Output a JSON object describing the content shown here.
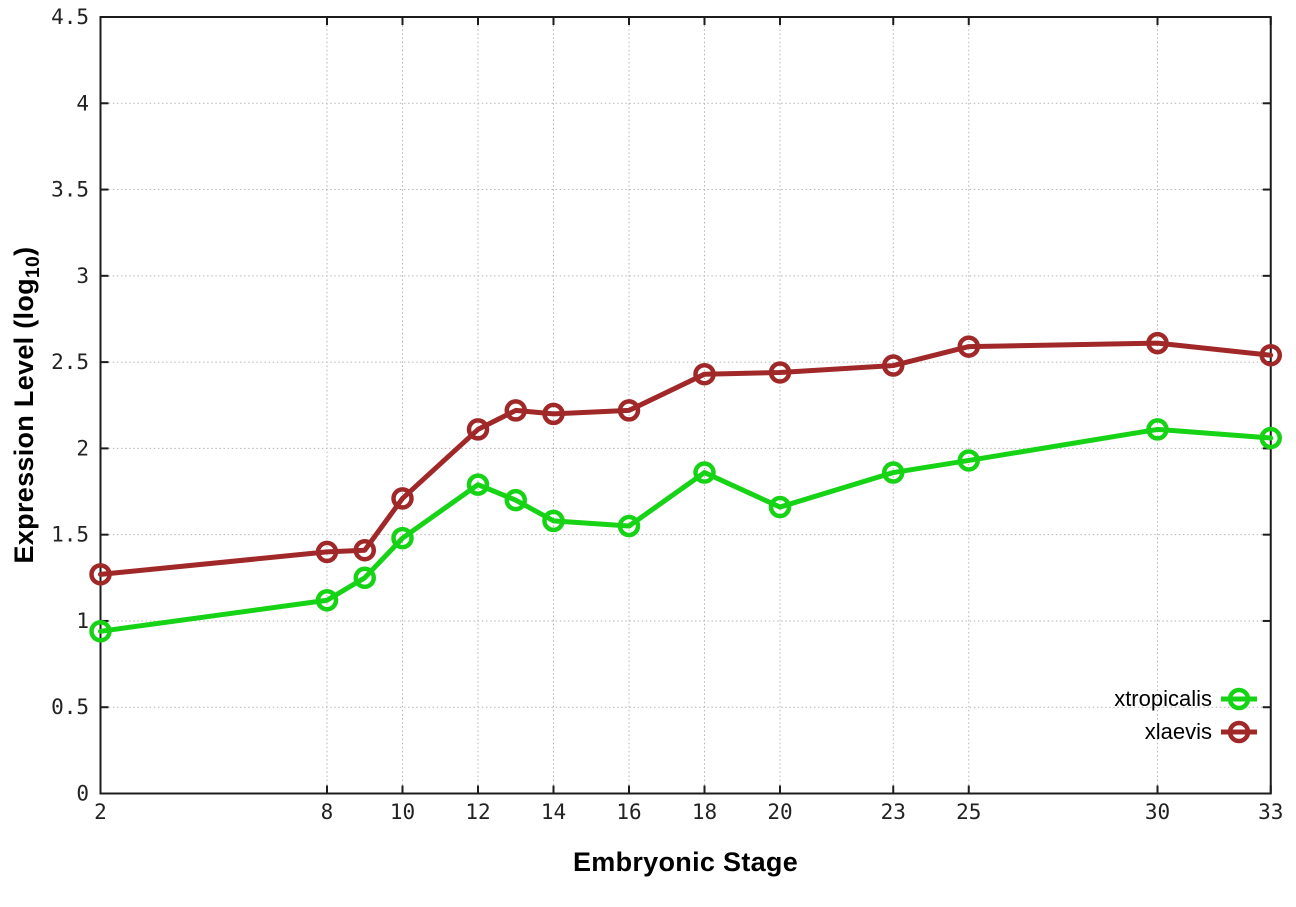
{
  "chart_data": {
    "type": "line",
    "title": "",
    "xlabel": "Embryonic Stage",
    "ylabel": {
      "pre": "Expression Level (log",
      "sub": "10",
      "post": ")"
    },
    "xlim": [
      2,
      33
    ],
    "ylim": [
      0,
      4.5
    ],
    "grid": true,
    "legend_position": "bottom-right-inside",
    "xticks": [
      2,
      8,
      10,
      12,
      14,
      16,
      18,
      20,
      23,
      25,
      30,
      33
    ],
    "yticks": [
      0,
      0.5,
      1,
      1.5,
      2,
      2.5,
      3,
      3.5,
      4,
      4.5
    ],
    "x": [
      2,
      8,
      9,
      10,
      12,
      13,
      14,
      16,
      18,
      20,
      23,
      25,
      30,
      33
    ],
    "series": [
      {
        "name": "xtropicalis",
        "color": "#16d316",
        "marker": "open-circle",
        "values": [
          0.94,
          1.12,
          1.25,
          1.48,
          1.79,
          1.7,
          1.58,
          1.55,
          1.86,
          1.66,
          1.86,
          1.93,
          2.11,
          2.06
        ]
      },
      {
        "name": "xlaevis",
        "color": "#a02828",
        "marker": "open-circle",
        "values": [
          1.27,
          1.4,
          1.41,
          1.71,
          2.11,
          2.22,
          2.2,
          2.22,
          2.43,
          2.44,
          2.48,
          2.59,
          2.61,
          2.54
        ]
      }
    ],
    "style": {
      "grid_color": "#b5b5b5",
      "border_color": "#1c1c1c",
      "tick_label_color": "#222222",
      "background": "#ffffff"
    }
  }
}
